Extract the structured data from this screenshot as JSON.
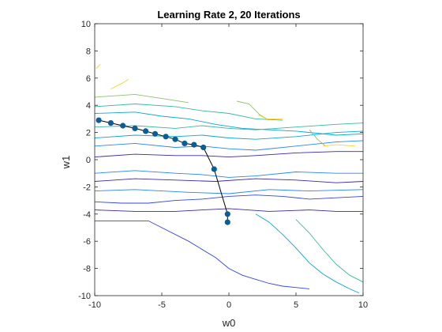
{
  "chart_data": {
    "type": "line",
    "title": "Learning Rate 2, 20 Iterations",
    "xlabel": "w0",
    "ylabel": "w1",
    "xlim": [
      -10,
      10
    ],
    "ylim": [
      -10,
      10
    ],
    "xticks": [
      -10,
      -5,
      0,
      5,
      10
    ],
    "yticks": [
      -10,
      -8,
      -6,
      -4,
      -2,
      0,
      2,
      4,
      6,
      8,
      10
    ],
    "grid": false,
    "legend": "none",
    "series": [
      {
        "type": "line-marker",
        "color": "#0b5d96",
        "line_color": "#000000",
        "x": [
          -0.1,
          -0.1,
          -1.1,
          -1.9,
          -2.6,
          -3.3,
          -4.0,
          -4.7,
          -5.5,
          -6.2,
          -7.0,
          -7.9,
          -8.8,
          -9.7
        ],
        "y": [
          -4.6,
          -4.0,
          -0.7,
          0.9,
          1.1,
          1.2,
          1.5,
          1.7,
          1.9,
          2.1,
          2.3,
          2.5,
          2.7,
          2.9
        ]
      }
    ],
    "contours": [
      {
        "level": 1,
        "color": "#3e26a8",
        "x": [
          -10,
          -7,
          -4,
          -1,
          2,
          5,
          8,
          10
        ],
        "y": [
          -1.6,
          -1.4,
          -1.5,
          -1.6,
          -1.4,
          -1.5,
          -1.7,
          -1.6
        ]
      },
      {
        "level": 1,
        "color": "#3e26a8",
        "x": [
          -10,
          -7,
          -4,
          -2,
          0,
          2,
          5,
          8,
          10
        ],
        "y": [
          0.2,
          0.4,
          0.3,
          0.3,
          0.2,
          0.3,
          0.5,
          0.6,
          0.6
        ]
      },
      {
        "level": 1,
        "color": "#3e26a8",
        "x": [
          -10,
          -7,
          -4,
          -2,
          0,
          3,
          6,
          8,
          10
        ],
        "y": [
          -3.7,
          -3.8,
          -3.8,
          -3.7,
          -3.6,
          -3.8,
          -3.7,
          -3.8,
          -3.8
        ]
      },
      {
        "level": 2,
        "color": "#3546d8",
        "x": [
          -10,
          -6,
          -3,
          -1,
          0,
          1,
          2,
          3,
          4,
          5,
          6
        ],
        "y": [
          -4.5,
          -4.5,
          -6.0,
          -7.2,
          -8.0,
          -8.5,
          -8.8,
          -9.1,
          -9.3,
          -9.4,
          -9.5
        ]
      },
      {
        "level": 2,
        "color": "#3546d8",
        "x": [
          -10,
          -8,
          -6,
          -4,
          -2,
          0,
          2,
          4,
          6,
          8,
          10
        ],
        "y": [
          -3.1,
          -3.2,
          -3.2,
          -3.0,
          -2.9,
          -2.7,
          -2.6,
          -2.7,
          -2.9,
          -2.8,
          -2.7
        ]
      },
      {
        "level": 3,
        "color": "#2a83f6",
        "x": [
          -10,
          -7,
          -4,
          -2,
          0,
          2,
          5,
          8,
          10
        ],
        "y": [
          1.0,
          1.2,
          0.9,
          1.0,
          0.8,
          0.7,
          1.0,
          1.3,
          1.4
        ]
      },
      {
        "level": 3,
        "color": "#2a83f6",
        "x": [
          -10,
          -7,
          -4,
          -2,
          0,
          2,
          5,
          8,
          10
        ],
        "y": [
          -1.0,
          -0.8,
          -1.0,
          -1.1,
          -1.3,
          -1.2,
          -0.9,
          -1.0,
          -1.0
        ]
      },
      {
        "level": 3,
        "color": "#2a83f6",
        "x": [
          -10,
          -7,
          -3,
          0,
          3,
          6,
          10
        ],
        "y": [
          -2.3,
          -2.2,
          -2.4,
          -2.5,
          -2.2,
          -2.3,
          -2.2
        ]
      },
      {
        "level": 4,
        "color": "#0ca7cf",
        "x": [
          -10,
          -7,
          -4,
          -2,
          0,
          2,
          5,
          8,
          10
        ],
        "y": [
          1.6,
          1.8,
          1.7,
          1.8,
          1.6,
          1.5,
          1.7,
          2.0,
          2.1
        ]
      },
      {
        "level": 4,
        "color": "#0ca7cf",
        "x": [
          -10,
          -7,
          -5,
          -3,
          -1,
          1,
          3,
          5,
          8,
          10
        ],
        "y": [
          3.4,
          3.5,
          3.2,
          3.0,
          2.6,
          2.3,
          2.2,
          2.1,
          1.8,
          1.9
        ]
      },
      {
        "level": 4,
        "color": "#0ca7cf",
        "x": [
          2,
          3,
          4,
          5,
          6,
          7,
          8,
          9,
          9.7
        ],
        "y": [
          -4.0,
          -4.6,
          -5.5,
          -6.5,
          -7.6,
          -8.4,
          -9.0,
          -9.5,
          -9.8
        ]
      },
      {
        "level": 5,
        "color": "#38b99e",
        "x": [
          -10,
          -7,
          -4,
          -2,
          0,
          2,
          5,
          8,
          10
        ],
        "y": [
          2.4,
          2.5,
          2.3,
          2.5,
          2.3,
          2.2,
          2.4,
          2.6,
          2.7
        ]
      },
      {
        "level": 5,
        "color": "#38b99e",
        "x": [
          5,
          6,
          7,
          8,
          9,
          10
        ],
        "y": [
          -4.4,
          -5.4,
          -6.6,
          -7.7,
          -8.5,
          -9.0
        ]
      },
      {
        "level": 5,
        "color": "#38b99e",
        "x": [
          -10,
          -7,
          -4,
          -2,
          0,
          2,
          4
        ],
        "y": [
          3.9,
          4.1,
          3.9,
          3.6,
          3.4,
          3.0,
          2.9
        ]
      },
      {
        "level": 6,
        "color": "#92bf73",
        "x": [
          -10,
          -7,
          -5,
          -3
        ],
        "y": [
          4.6,
          4.8,
          4.5,
          4.2
        ]
      },
      {
        "level": 6,
        "color": "#92bf73",
        "x": [
          0.6,
          1.5,
          2.3,
          3.0
        ],
        "y": [
          4.3,
          4.1,
          3.3,
          2.9
        ]
      },
      {
        "level": 6,
        "color": "#92bf73",
        "x": [
          6.0,
          6.6,
          7.2
        ],
        "y": [
          2.2,
          1.5,
          1.0
        ]
      },
      {
        "level": 7,
        "color": "#f9d528",
        "x": [
          -8.8,
          -8.0,
          -7.5
        ],
        "y": [
          5.2,
          5.6,
          5.9
        ]
      },
      {
        "level": 7,
        "color": "#f9d528",
        "x": [
          -9.9,
          -9.6
        ],
        "y": [
          6.7,
          7.0
        ]
      },
      {
        "level": 7,
        "color": "#f9d528",
        "x": [
          2.2,
          2.8,
          4.0
        ],
        "y": [
          3.3,
          3.0,
          3.0
        ]
      },
      {
        "level": 7,
        "color": "#f9d528",
        "x": [
          7.0,
          8.0,
          9.4
        ],
        "y": [
          1.0,
          1.1,
          1.0
        ]
      }
    ]
  }
}
